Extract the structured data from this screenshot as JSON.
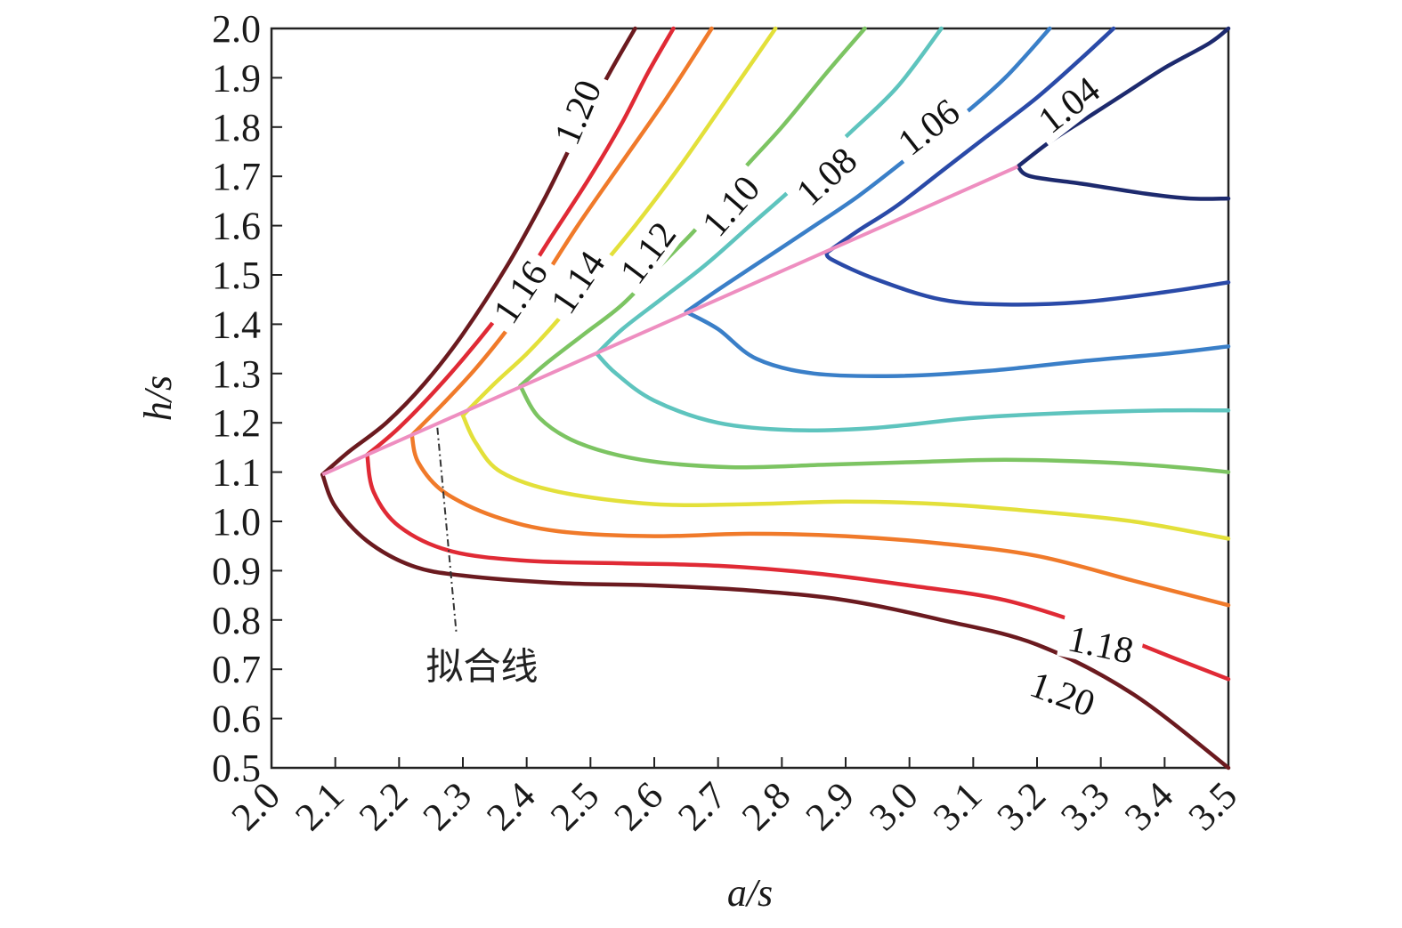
{
  "chart_data": {
    "type": "line",
    "title": "",
    "xlabel": "a/s",
    "ylabel": "h/s",
    "xlim": [
      2.0,
      3.5
    ],
    "ylim": [
      0.5,
      2.0
    ],
    "x_ticks": [
      "2.0",
      "2.1",
      "2.2",
      "2.3",
      "2.4",
      "2.5",
      "2.6",
      "2.7",
      "2.8",
      "2.9",
      "3.0",
      "3.1",
      "3.2",
      "3.3",
      "3.4",
      "3.5"
    ],
    "y_ticks": [
      "0.5",
      "0.6",
      "0.7",
      "0.8",
      "0.9",
      "1.0",
      "1.1",
      "1.2",
      "1.3",
      "1.4",
      "1.5",
      "1.6",
      "1.7",
      "1.8",
      "1.9",
      "2.0"
    ],
    "grid": false,
    "series": [
      {
        "name": "1.20",
        "color": "#6b1a1f",
        "upper": [
          [
            2.08,
            1.095
          ],
          [
            2.12,
            1.14
          ],
          [
            2.18,
            1.2
          ],
          [
            2.24,
            1.28
          ],
          [
            2.3,
            1.38
          ],
          [
            2.37,
            1.52
          ],
          [
            2.43,
            1.66
          ],
          [
            2.48,
            1.79
          ],
          [
            2.53,
            1.91
          ],
          [
            2.57,
            2.0
          ]
        ],
        "lower": [
          [
            2.08,
            1.095
          ],
          [
            2.1,
            1.03
          ],
          [
            2.15,
            0.96
          ],
          [
            2.22,
            0.91
          ],
          [
            2.3,
            0.89
          ],
          [
            2.45,
            0.875
          ],
          [
            2.6,
            0.87
          ],
          [
            2.75,
            0.86
          ],
          [
            2.9,
            0.84
          ],
          [
            3.05,
            0.8
          ],
          [
            3.2,
            0.75
          ],
          [
            3.35,
            0.65
          ],
          [
            3.5,
            0.5
          ]
        ]
      },
      {
        "name": "1.18",
        "color": "#e02a35",
        "upper": [
          [
            2.15,
            1.135
          ],
          [
            2.2,
            1.19
          ],
          [
            2.26,
            1.27
          ],
          [
            2.32,
            1.36
          ],
          [
            2.38,
            1.46
          ],
          [
            2.44,
            1.58
          ],
          [
            2.5,
            1.7
          ],
          [
            2.55,
            1.81
          ],
          [
            2.59,
            1.91
          ],
          [
            2.63,
            2.0
          ]
        ],
        "lower": [
          [
            2.15,
            1.135
          ],
          [
            2.16,
            1.06
          ],
          [
            2.2,
            0.99
          ],
          [
            2.28,
            0.94
          ],
          [
            2.4,
            0.92
          ],
          [
            2.55,
            0.915
          ],
          [
            2.7,
            0.91
          ],
          [
            2.85,
            0.895
          ],
          [
            3.0,
            0.87
          ],
          [
            3.15,
            0.84
          ],
          [
            3.3,
            0.78
          ],
          [
            3.42,
            0.72
          ],
          [
            3.5,
            0.68
          ]
        ]
      },
      {
        "name": "1.16",
        "color": "#f07a2a",
        "upper": [
          [
            2.22,
            1.175
          ],
          [
            2.27,
            1.24
          ],
          [
            2.32,
            1.31
          ],
          [
            2.37,
            1.39
          ],
          [
            2.42,
            1.48
          ],
          [
            2.48,
            1.6
          ],
          [
            2.55,
            1.73
          ],
          [
            2.62,
            1.86
          ],
          [
            2.69,
            2.0
          ]
        ],
        "lower": [
          [
            2.22,
            1.175
          ],
          [
            2.23,
            1.12
          ],
          [
            2.27,
            1.06
          ],
          [
            2.35,
            1.01
          ],
          [
            2.45,
            0.98
          ],
          [
            2.6,
            0.97
          ],
          [
            2.75,
            0.975
          ],
          [
            2.9,
            0.97
          ],
          [
            3.05,
            0.955
          ],
          [
            3.2,
            0.93
          ],
          [
            3.35,
            0.88
          ],
          [
            3.5,
            0.83
          ]
        ]
      },
      {
        "name": "1.14",
        "color": "#e3e03a",
        "upper": [
          [
            2.3,
            1.215
          ],
          [
            2.35,
            1.28
          ],
          [
            2.4,
            1.34
          ],
          [
            2.45,
            1.41
          ],
          [
            2.5,
            1.49
          ],
          [
            2.57,
            1.6
          ],
          [
            2.64,
            1.72
          ],
          [
            2.71,
            1.85
          ],
          [
            2.79,
            2.0
          ]
        ],
        "lower": [
          [
            2.3,
            1.215
          ],
          [
            2.32,
            1.16
          ],
          [
            2.36,
            1.1
          ],
          [
            2.45,
            1.06
          ],
          [
            2.6,
            1.035
          ],
          [
            2.75,
            1.035
          ],
          [
            2.9,
            1.04
          ],
          [
            3.05,
            1.035
          ],
          [
            3.2,
            1.02
          ],
          [
            3.35,
            1.0
          ],
          [
            3.5,
            0.965
          ]
        ]
      },
      {
        "name": "1.12",
        "color": "#7cc462",
        "upper": [
          [
            2.39,
            1.275
          ],
          [
            2.43,
            1.32
          ],
          [
            2.49,
            1.38
          ],
          [
            2.55,
            1.44
          ],
          [
            2.61,
            1.52
          ],
          [
            2.67,
            1.6
          ],
          [
            2.73,
            1.7
          ],
          [
            2.8,
            1.8
          ],
          [
            2.87,
            1.91
          ],
          [
            2.93,
            2.0
          ]
        ],
        "lower": [
          [
            2.39,
            1.275
          ],
          [
            2.42,
            1.21
          ],
          [
            2.48,
            1.16
          ],
          [
            2.58,
            1.125
          ],
          [
            2.72,
            1.11
          ],
          [
            2.87,
            1.115
          ],
          [
            3.0,
            1.12
          ],
          [
            3.15,
            1.125
          ],
          [
            3.3,
            1.12
          ],
          [
            3.42,
            1.11
          ],
          [
            3.5,
            1.1
          ]
        ]
      },
      {
        "name": "1.10",
        "color": "#5ec4be",
        "upper": [
          [
            2.51,
            1.34
          ],
          [
            2.55,
            1.39
          ],
          [
            2.61,
            1.45
          ],
          [
            2.68,
            1.52
          ],
          [
            2.75,
            1.6
          ],
          [
            2.82,
            1.68
          ],
          [
            2.9,
            1.78
          ],
          [
            2.98,
            1.88
          ],
          [
            3.05,
            2.0
          ]
        ],
        "lower": [
          [
            2.51,
            1.34
          ],
          [
            2.54,
            1.3
          ],
          [
            2.6,
            1.245
          ],
          [
            2.7,
            1.2
          ],
          [
            2.82,
            1.185
          ],
          [
            2.95,
            1.19
          ],
          [
            3.1,
            1.21
          ],
          [
            3.25,
            1.22
          ],
          [
            3.4,
            1.225
          ],
          [
            3.5,
            1.225
          ]
        ]
      },
      {
        "name": "1.08",
        "color": "#3a7fc8",
        "upper": [
          [
            2.65,
            1.425
          ],
          [
            2.7,
            1.47
          ],
          [
            2.77,
            1.53
          ],
          [
            2.84,
            1.59
          ],
          [
            2.92,
            1.66
          ],
          [
            3.0,
            1.74
          ],
          [
            3.08,
            1.82
          ],
          [
            3.15,
            1.9
          ],
          [
            3.22,
            2.0
          ]
        ],
        "lower": [
          [
            2.65,
            1.425
          ],
          [
            2.7,
            1.39
          ],
          [
            2.76,
            1.33
          ],
          [
            2.85,
            1.3
          ],
          [
            2.98,
            1.295
          ],
          [
            3.12,
            1.305
          ],
          [
            3.27,
            1.325
          ],
          [
            3.4,
            1.34
          ],
          [
            3.5,
            1.355
          ]
        ]
      },
      {
        "name": "1.06",
        "color": "#2a4aa8",
        "upper": [
          [
            2.87,
            1.545
          ],
          [
            2.92,
            1.59
          ],
          [
            2.98,
            1.64
          ],
          [
            3.05,
            1.71
          ],
          [
            3.12,
            1.78
          ],
          [
            3.2,
            1.86
          ],
          [
            3.27,
            1.94
          ],
          [
            3.32,
            2.0
          ]
        ],
        "lower": [
          [
            2.87,
            1.545
          ],
          [
            2.88,
            1.53
          ],
          [
            2.95,
            1.49
          ],
          [
            3.05,
            1.45
          ],
          [
            3.15,
            1.44
          ],
          [
            3.27,
            1.445
          ],
          [
            3.4,
            1.465
          ],
          [
            3.5,
            1.485
          ]
        ]
      },
      {
        "name": "1.04",
        "color": "#1d2a6e",
        "upper": [
          [
            3.17,
            1.72
          ],
          [
            3.22,
            1.77
          ],
          [
            3.28,
            1.82
          ],
          [
            3.34,
            1.87
          ],
          [
            3.4,
            1.92
          ],
          [
            3.47,
            1.97
          ],
          [
            3.5,
            2.0
          ]
        ],
        "lower": [
          [
            3.17,
            1.72
          ],
          [
            3.19,
            1.7
          ],
          [
            3.27,
            1.685
          ],
          [
            3.37,
            1.665
          ],
          [
            3.44,
            1.655
          ],
          [
            3.5,
            1.655
          ]
        ]
      }
    ],
    "fit_line": {
      "color": "#ee8ec0",
      "points": [
        [
          2.08,
          1.095
        ],
        [
          3.17,
          1.72
        ]
      ]
    },
    "annotation": {
      "text": "拟合线",
      "point": [
        2.26,
        1.19
      ],
      "anchor": [
        2.29,
        0.77
      ],
      "label_pos": [
        2.33,
        0.68
      ]
    },
    "contour_labels": [
      {
        "text": "1.20",
        "x": 2.48,
        "y": 1.83,
        "angle": -67
      },
      {
        "text": "1.16",
        "x": 2.39,
        "y": 1.465,
        "angle": -56
      },
      {
        "text": "1.14",
        "x": 2.48,
        "y": 1.485,
        "angle": -56
      },
      {
        "text": "1.12",
        "x": 2.59,
        "y": 1.545,
        "angle": -53
      },
      {
        "text": "1.10",
        "x": 2.72,
        "y": 1.64,
        "angle": -49
      },
      {
        "text": "1.08",
        "x": 2.87,
        "y": 1.7,
        "angle": -42
      },
      {
        "text": "1.06",
        "x": 3.03,
        "y": 1.8,
        "angle": -38
      },
      {
        "text": "1.04",
        "x": 3.25,
        "y": 1.845,
        "angle": -38
      },
      {
        "text": "1.18",
        "x": 3.3,
        "y": 0.75,
        "angle": 12
      },
      {
        "text": "1.20",
        "x": 3.24,
        "y": 0.65,
        "angle": 20
      }
    ]
  }
}
